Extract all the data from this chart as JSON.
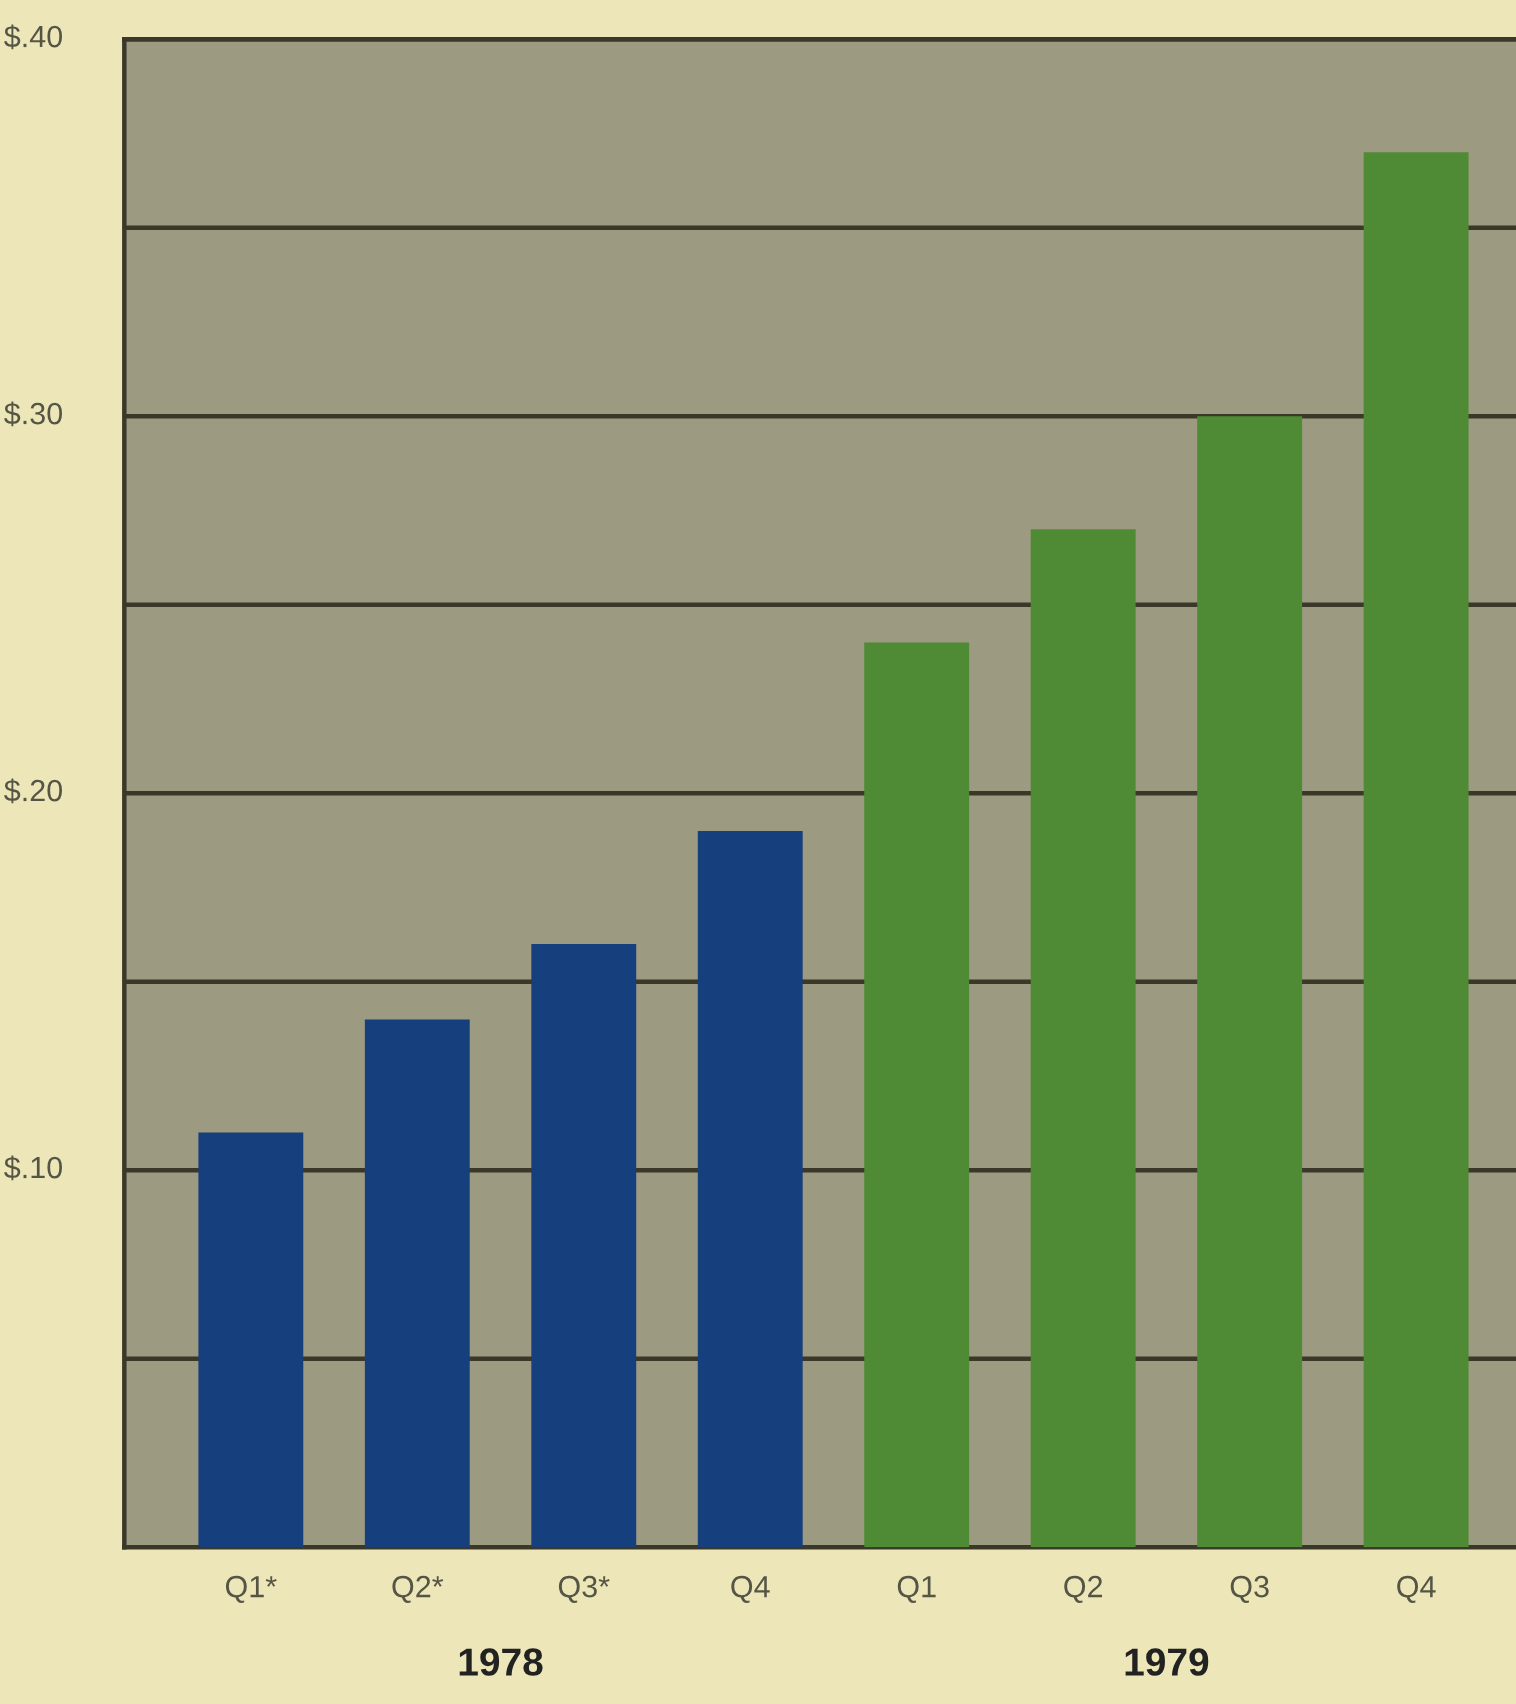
{
  "chart_data": {
    "type": "bar",
    "categories": [
      "Q1*",
      "Q2*",
      "Q3*",
      "Q4",
      "Q1",
      "Q2",
      "Q3",
      "Q4"
    ],
    "values": [
      0.11,
      0.14,
      0.16,
      0.19,
      0.24,
      0.27,
      0.3,
      0.37
    ],
    "colors": [
      "#163f7e",
      "#163f7e",
      "#163f7e",
      "#163f7e",
      "#4f8a34",
      "#4f8a34",
      "#4f8a34",
      "#4f8a34"
    ],
    "ylim": [
      0,
      0.4
    ],
    "yticks": [
      {
        "value": 0.05,
        "label": null
      },
      {
        "value": 0.1,
        "label": "$.10"
      },
      {
        "value": 0.15,
        "label": null
      },
      {
        "value": 0.2,
        "label": "$.20"
      },
      {
        "value": 0.25,
        "label": null
      },
      {
        "value": 0.3,
        "label": "$.30"
      },
      {
        "value": 0.35,
        "label": null
      },
      {
        "value": 0.4,
        "label": "$.40"
      }
    ],
    "grid": "y",
    "annotations": [
      "1978",
      "1979"
    ]
  }
}
